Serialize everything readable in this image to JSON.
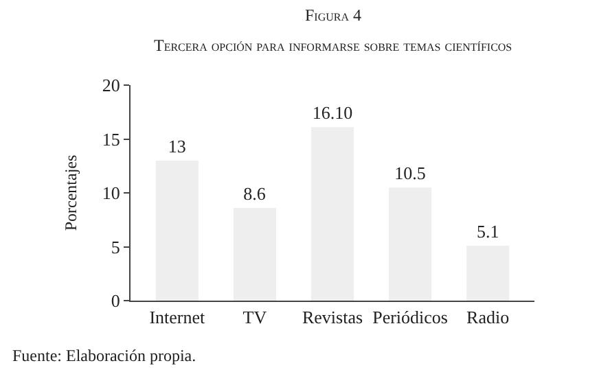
{
  "chart_data": {
    "type": "bar",
    "title": "Figura 4",
    "subtitle": "Tercera opción para informarse sobre temas científicos",
    "ylabel": "Porcentajes",
    "categories": [
      "Internet",
      "TV",
      "Revistas",
      "Periódicos",
      "Radio"
    ],
    "values": [
      13,
      8.6,
      16.1,
      10.5,
      5.1
    ],
    "value_labels": [
      "13",
      "8.6",
      "16.10",
      "10.5",
      "5.1"
    ],
    "color": "#eeeeee",
    "ylim": [
      0,
      20
    ],
    "yticks": [
      0,
      5,
      10,
      15,
      20
    ],
    "annotations": [
      "Fuente: Elaboración propia."
    ]
  }
}
